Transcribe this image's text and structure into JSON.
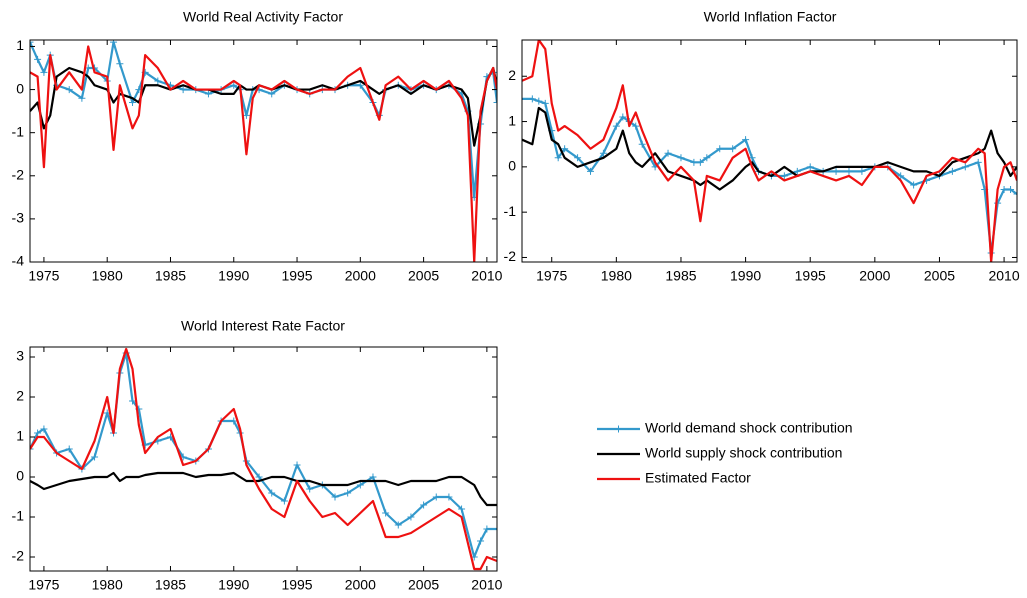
{
  "chart_data": [
    {
      "type": "line",
      "title": "World Real Activity Factor",
      "x": [
        1973.9,
        1974.5,
        1975,
        1975.5,
        1976,
        1977,
        1978,
        1978.5,
        1979,
        1980,
        1980.5,
        1981,
        1982,
        1982.5,
        1983,
        1984,
        1985,
        1986,
        1987,
        1988,
        1989,
        1990,
        1990.5,
        1991,
        1991.5,
        1992,
        1993,
        1994,
        1995,
        1996,
        1997,
        1998,
        1999,
        2000,
        2001,
        2001.5,
        2002,
        2003,
        2004,
        2005,
        2006,
        2007,
        2008,
        2008.5,
        2009,
        2009.5,
        2010,
        2010.5,
        2010.8
      ],
      "series": [
        {
          "name": "World demand shock contribution",
          "color": "#3399cc",
          "marker": "+",
          "values": [
            1.1,
            0.7,
            0.4,
            0.8,
            0.1,
            0.0,
            -0.2,
            0.5,
            0.5,
            0.2,
            1.1,
            0.6,
            -0.3,
            0.0,
            0.4,
            0.2,
            0.1,
            0.0,
            0.0,
            -0.1,
            0.0,
            0.1,
            0.0,
            -0.6,
            0.0,
            0.0,
            -0.1,
            0.1,
            0.0,
            -0.1,
            0.0,
            0.0,
            0.1,
            0.1,
            -0.3,
            -0.6,
            0.0,
            0.1,
            0.0,
            0.1,
            0.0,
            0.1,
            -0.1,
            -0.5,
            -2.5,
            -0.8,
            0.3,
            0.4,
            -0.3
          ]
        },
        {
          "name": "World supply shock contribution",
          "color": "#000000",
          "values": [
            -0.5,
            -0.3,
            -0.9,
            -0.6,
            0.3,
            0.5,
            0.4,
            0.3,
            0.1,
            0.0,
            -0.3,
            -0.1,
            -0.2,
            -0.3,
            0.1,
            0.1,
            0.0,
            0.1,
            0.0,
            0.0,
            -0.1,
            -0.1,
            0.1,
            0.0,
            0.0,
            0.1,
            0.0,
            0.1,
            0.0,
            0.0,
            0.1,
            0.0,
            0.1,
            0.2,
            0.0,
            -0.1,
            0.0,
            0.1,
            -0.1,
            0.1,
            0.0,
            0.1,
            0.0,
            -0.2,
            -1.3,
            -0.6,
            0.2,
            0.5,
            0.1
          ]
        },
        {
          "name": "Estimated Factor",
          "color": "#ee1111",
          "values": [
            0.4,
            0.3,
            -1.8,
            0.8,
            0.0,
            0.4,
            0.0,
            1.0,
            0.4,
            0.3,
            -1.4,
            0.1,
            -0.9,
            -0.6,
            0.8,
            0.5,
            0.0,
            0.2,
            0.0,
            0.0,
            0.0,
            0.2,
            0.1,
            -1.5,
            -0.2,
            0.1,
            0.0,
            0.2,
            0.0,
            -0.1,
            0.0,
            0.0,
            0.3,
            0.5,
            -0.3,
            -0.7,
            0.1,
            0.3,
            0.0,
            0.2,
            0.0,
            0.2,
            -0.2,
            -0.6,
            -4.0,
            -0.5,
            0.2,
            0.5,
            0.0
          ]
        }
      ],
      "xlim": [
        1973.9,
        2010.8
      ],
      "ylim": [
        -4,
        1.15
      ],
      "xticks": [
        1975,
        1980,
        1985,
        1990,
        1995,
        2000,
        2005,
        2010
      ],
      "yticks": [
        -4,
        -3,
        -2,
        -1,
        0,
        1
      ]
    },
    {
      "type": "line",
      "title": "World Inflation Factor",
      "x": [
        1972.7,
        1973.5,
        1974,
        1974.5,
        1975,
        1975.5,
        1976,
        1977,
        1978,
        1979,
        1980,
        1980.5,
        1981,
        1981.5,
        1982,
        1983,
        1984,
        1985,
        1986,
        1986.5,
        1987,
        1988,
        1989,
        1990,
        1990.5,
        1991,
        1992,
        1993,
        1994,
        1995,
        1996,
        1997,
        1998,
        1999,
        2000,
        2001,
        2002,
        2003,
        2004,
        2005,
        2006,
        2007,
        2008,
        2008.5,
        2009,
        2009.5,
        2010,
        2010.5,
        2011
      ],
      "series": [
        {
          "color": "#3399cc",
          "marker": "+",
          "values": [
            1.5,
            1.5,
            1.45,
            1.4,
            0.8,
            0.2,
            0.4,
            0.2,
            -0.1,
            0.3,
            0.9,
            1.1,
            1.0,
            0.9,
            0.5,
            0.0,
            0.3,
            0.2,
            0.1,
            0.1,
            0.2,
            0.4,
            0.4,
            0.6,
            0.2,
            -0.1,
            -0.2,
            -0.2,
            -0.1,
            0.0,
            -0.1,
            -0.1,
            -0.1,
            -0.1,
            0.0,
            0.0,
            -0.2,
            -0.4,
            -0.3,
            -0.2,
            -0.1,
            0.0,
            0.1,
            -0.5,
            -1.9,
            -0.8,
            -0.5,
            -0.5,
            -0.6
          ]
        },
        {
          "color": "#000000",
          "values": [
            0.6,
            0.5,
            1.3,
            1.2,
            0.6,
            0.5,
            0.2,
            0.0,
            0.1,
            0.2,
            0.4,
            0.8,
            0.3,
            0.1,
            0.0,
            0.3,
            -0.1,
            -0.2,
            -0.3,
            -0.4,
            -0.3,
            -0.5,
            -0.3,
            0.0,
            0.1,
            -0.1,
            -0.2,
            0.0,
            -0.2,
            -0.1,
            -0.1,
            0.0,
            0.0,
            0.0,
            0.0,
            0.1,
            0.0,
            -0.1,
            -0.1,
            -0.2,
            0.1,
            0.2,
            0.3,
            0.4,
            0.8,
            0.3,
            0.1,
            -0.2,
            0.0
          ]
        },
        {
          "color": "#ee1111",
          "values": [
            1.9,
            2.0,
            2.8,
            2.6,
            1.4,
            0.8,
            0.9,
            0.7,
            0.4,
            0.6,
            1.3,
            1.8,
            0.9,
            1.2,
            0.8,
            0.1,
            -0.3,
            0.0,
            -0.3,
            -1.2,
            -0.2,
            -0.3,
            0.2,
            0.4,
            0.0,
            -0.3,
            -0.1,
            -0.3,
            -0.2,
            -0.1,
            -0.2,
            -0.3,
            -0.2,
            -0.4,
            0.0,
            0.0,
            -0.3,
            -0.8,
            -0.2,
            -0.1,
            0.2,
            0.1,
            0.4,
            0.3,
            -2.1,
            -0.5,
            0.0,
            0.1,
            -0.3
          ]
        }
      ],
      "xlim": [
        1972.7,
        2011
      ],
      "ylim": [
        -2.1,
        2.8
      ],
      "xticks": [
        1975,
        1980,
        1985,
        1990,
        1995,
        2000,
        2005,
        2010
      ],
      "yticks": [
        -2,
        -1,
        0,
        1,
        2
      ]
    },
    {
      "type": "line",
      "title": "World Interest Rate Factor",
      "x": [
        1973.9,
        1974.5,
        1975,
        1976,
        1977,
        1978,
        1979,
        1980,
        1980.5,
        1981,
        1981.5,
        1982,
        1982.5,
        1983,
        1984,
        1985,
        1986,
        1987,
        1988,
        1989,
        1990,
        1990.5,
        1991,
        1992,
        1993,
        1994,
        1995,
        1996,
        1997,
        1998,
        1999,
        2000,
        2001,
        2002,
        2003,
        2004,
        2005,
        2006,
        2007,
        2008,
        2009,
        2009.5,
        2010,
        2010.8
      ],
      "series": [
        {
          "color": "#3399cc",
          "marker": "+",
          "values": [
            0.7,
            1.1,
            1.2,
            0.6,
            0.7,
            0.2,
            0.5,
            1.6,
            1.1,
            2.6,
            3.1,
            1.9,
            1.7,
            0.8,
            0.9,
            1.0,
            0.5,
            0.4,
            0.7,
            1.4,
            1.4,
            1.1,
            0.4,
            0.0,
            -0.4,
            -0.6,
            0.3,
            -0.3,
            -0.2,
            -0.5,
            -0.4,
            -0.2,
            0.0,
            -0.9,
            -1.2,
            -1.0,
            -0.7,
            -0.5,
            -0.5,
            -0.8,
            -2.0,
            -1.6,
            -1.3,
            -1.3
          ]
        },
        {
          "color": "#000000",
          "values": [
            -0.1,
            -0.2,
            -0.3,
            -0.2,
            -0.1,
            -0.05,
            0.0,
            0.0,
            0.1,
            -0.1,
            0.0,
            0.0,
            0.0,
            0.05,
            0.1,
            0.1,
            0.1,
            0.0,
            0.05,
            0.05,
            0.1,
            0.0,
            -0.1,
            -0.1,
            0.0,
            0.0,
            -0.1,
            -0.1,
            -0.2,
            -0.2,
            -0.2,
            -0.1,
            -0.1,
            -0.1,
            -0.2,
            -0.1,
            -0.1,
            -0.1,
            0.0,
            0.0,
            -0.2,
            -0.5,
            -0.7,
            -0.7
          ]
        },
        {
          "color": "#ee1111",
          "values": [
            0.7,
            1.0,
            1.0,
            0.6,
            0.4,
            0.2,
            0.9,
            2.0,
            1.1,
            2.7,
            3.2,
            2.7,
            1.3,
            0.6,
            1.0,
            1.2,
            0.3,
            0.4,
            0.7,
            1.4,
            1.7,
            1.2,
            0.3,
            -0.3,
            -0.8,
            -1.0,
            -0.1,
            -0.6,
            -1.0,
            -0.9,
            -1.2,
            -0.9,
            -0.6,
            -1.5,
            -1.5,
            -1.4,
            -1.2,
            -1.0,
            -0.8,
            -1.0,
            -2.3,
            -2.3,
            -2.0,
            -2.1
          ]
        }
      ],
      "xlim": [
        1973.9,
        2010.8
      ],
      "ylim": [
        -2.35,
        3.25
      ],
      "xticks": [
        1975,
        1980,
        1985,
        1990,
        1995,
        2000,
        2005,
        2010
      ],
      "yticks": [
        -2,
        -1,
        0,
        1,
        2,
        3
      ]
    }
  ]
}
